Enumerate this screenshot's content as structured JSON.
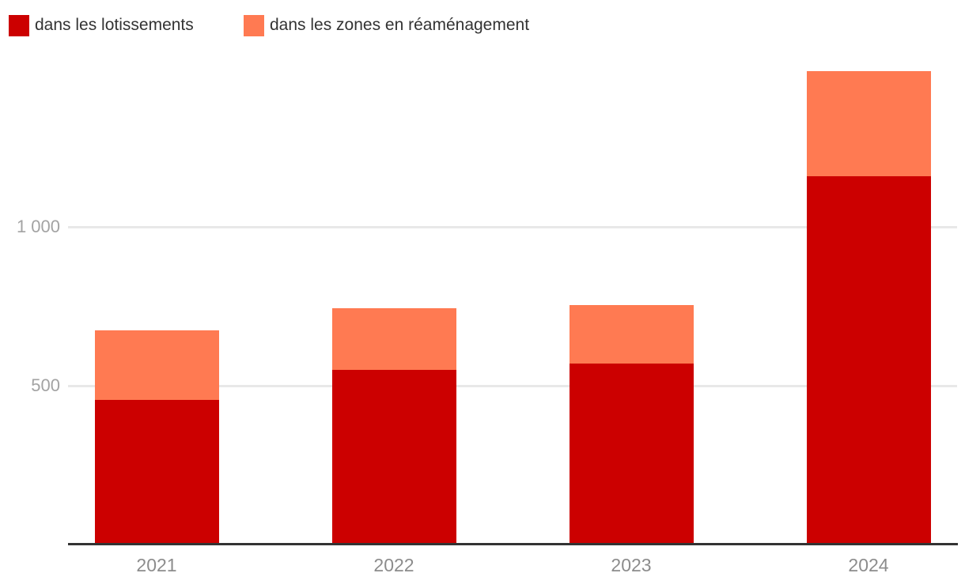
{
  "chart_data": {
    "type": "bar",
    "stacked": true,
    "title": "",
    "categories": [
      "2021",
      "2022",
      "2023",
      "2024"
    ],
    "series": [
      {
        "name": "dans les lotissements",
        "color": "#cc0000",
        "values": [
          455,
          550,
          570,
          1160
        ]
      },
      {
        "name": "dans les zones en réaménagement",
        "color": "#ff7a52",
        "values": [
          220,
          195,
          185,
          330
        ]
      }
    ],
    "totals": [
      675,
      745,
      755,
      1490
    ],
    "ylim": [
      0,
      1500
    ],
    "yticks": [
      {
        "value": 500,
        "label": "500"
      },
      {
        "value": 1000,
        "label": "1 000"
      }
    ],
    "grid": true,
    "legend_position": "top-left",
    "colors": {
      "background": "#ffffff",
      "grid": "#e8e8e8",
      "axis": "#333333",
      "y_tick_label": "#a3a3a3",
      "x_tick_label": "#8c8c8c",
      "legend_text": "#333333"
    }
  }
}
